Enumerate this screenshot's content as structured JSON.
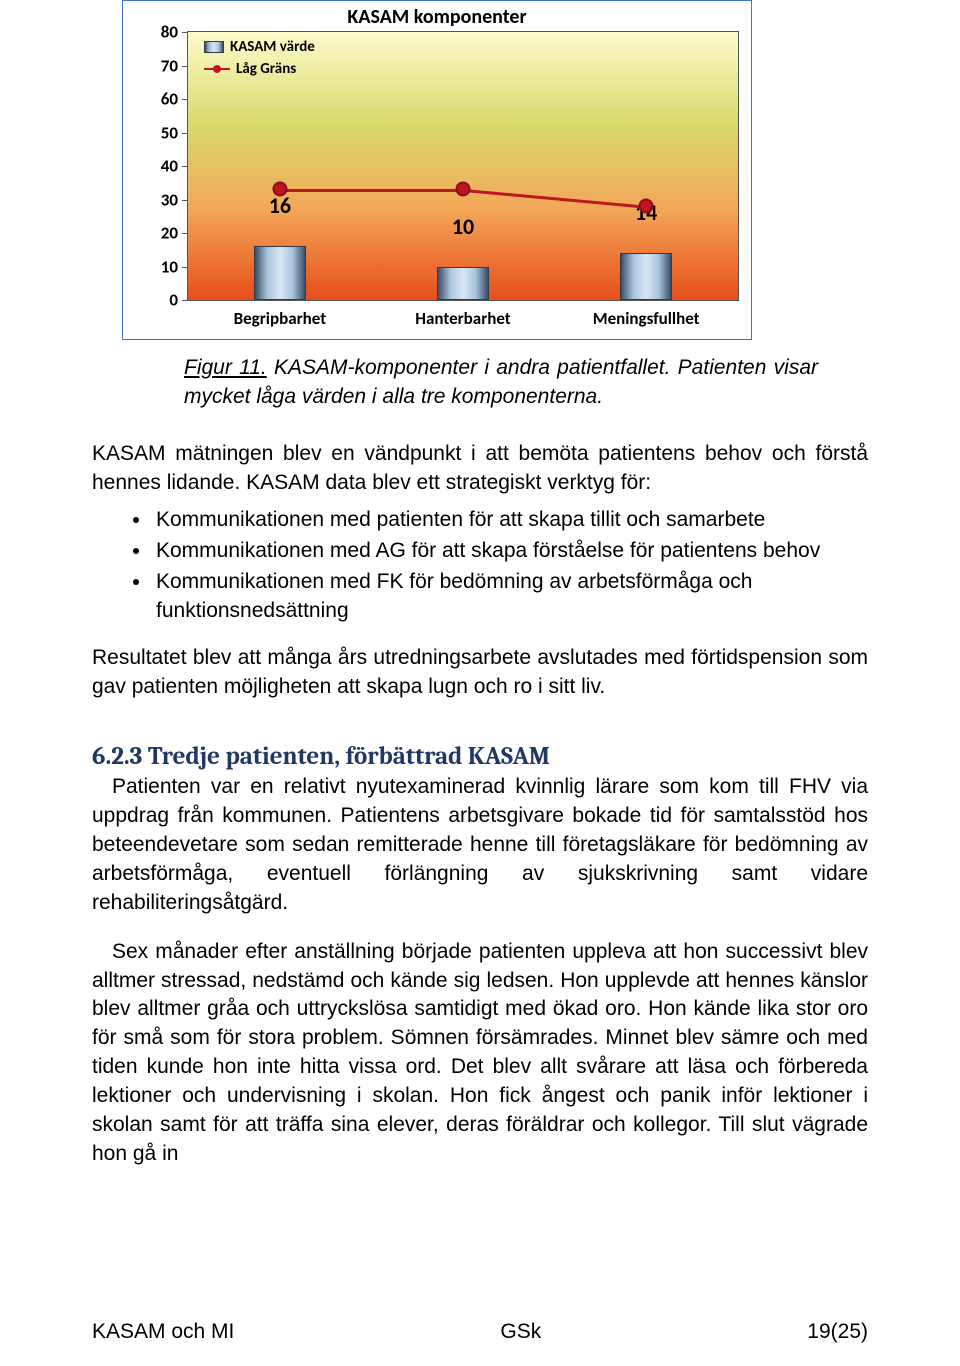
{
  "chart": {
    "title": "KASAM komponenter",
    "type": "bar+line",
    "ylim": [
      0,
      80
    ],
    "ytick_step": 10,
    "categories": [
      "Begripbarhet",
      "Hanterbarhet",
      "Meningsfullhet"
    ],
    "bar_values": [
      16,
      10,
      14
    ],
    "line_values": [
      33,
      33,
      28
    ],
    "bg_top_color": "#fdfbcb",
    "bg_bottom_color": "#e84e1b",
    "line_color": "#be1622",
    "legend_bar": "KASAM värde",
    "legend_line": "Låg Gräns"
  },
  "caption": {
    "lead": "Figur 11.",
    "rest": " KASAM-komponenter i andra patientfallet. Patienten visar mycket låga värden i alla tre komponenterna."
  },
  "p1": "KASAM mätningen blev en vändpunkt i att bemöta patientens behov och förstå hennes lidande. KASAM data blev ett strategiskt verktyg för:",
  "bullets": [
    "Kommunikationen med patienten för att skapa tillit och samarbete",
    "Kommunikationen med AG för att skapa förståelse för patientens behov",
    "Kommunikationen med FK för bedömning av arbetsförmåga och funktionsnedsättning"
  ],
  "p2": "Resultatet blev att många års utredningsarbete avslutades med förtidspension som gav patienten möjligheten att skapa lugn och ro i sitt liv.",
  "heading": "6.2.3 Tredje patienten, förbättrad KASAM",
  "p3": "Patienten var en relativt nyutexaminerad kvinnlig lärare som kom till FHV via uppdrag från kommunen. Patientens arbetsgivare bokade tid för samtalsstöd hos beteendevetare som sedan remitterade henne till företagsläkare för bedömning av arbetsförmåga, eventuell förlängning av sjukskrivning samt vidare rehabiliteringsåtgärd.",
  "p4": "Sex månader efter anställning började patienten uppleva att hon successivt blev alltmer stressad, nedstämd och kände sig ledsen. Hon upplevde att hennes känslor blev alltmer gråa och uttryckslösa samtidigt med ökad oro. Hon kände lika stor oro för små som för stora problem. Sömnen försämrades. Minnet blev sämre och med tiden kunde hon inte hitta vissa ord. Det blev allt svårare att läsa och förbereda lektioner och undervisning i skolan. Hon fick ångest och panik inför lektioner i skolan samt för att träffa sina elever, deras föräldrar och kollegor. Till slut vägrade hon gå in",
  "footer": {
    "left": "KASAM och MI",
    "center": "GSk",
    "right": "19(25)"
  }
}
